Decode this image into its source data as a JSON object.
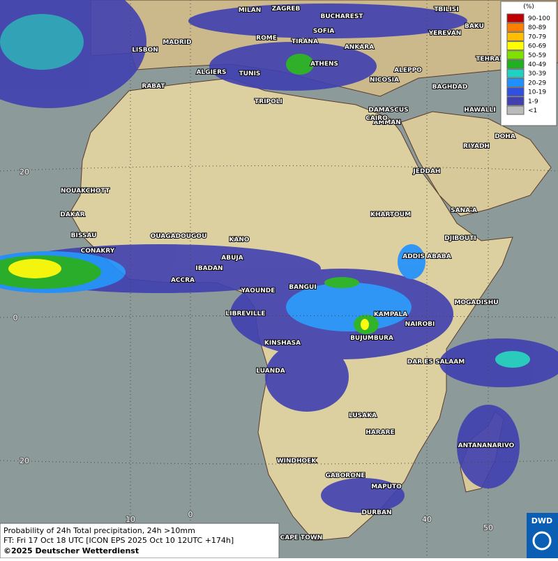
{
  "map": {
    "cities": [
      "MILAN",
      "ZAGREB",
      "BUCHAREST",
      "TBILISI",
      "BAKU",
      "YEREVAN",
      "ROME",
      "SOFIA",
      "MADRID",
      "LISBON",
      "TIRANA",
      "ANKARA",
      "TEHRAN",
      "ATHENS",
      "ALGIERS",
      "TUNIS",
      "ALEPPO",
      "RABAT",
      "NICOSIA",
      "BAGHDAD",
      "DAMASCUS",
      "TRIPOLI",
      "AMMAN",
      "HAWALLI",
      "CAIRO",
      "DOHA",
      "RIYADH",
      "NOUAKCHOTT",
      "JEDDAH",
      "DAKAR",
      "KHARTOUM",
      "SANA'A",
      "BISSAU",
      "OUAGADOUGOU",
      "KANO",
      "DJIBOUTI",
      "CONAKRY",
      "ABUJA",
      "ADDIS ABABA",
      "IBADAN",
      "ACCRA",
      "YAOUNDE",
      "BANGUI",
      "MOGADISHU",
      "LIBREVILLE",
      "KAMPALA",
      "NAIROBI",
      "BUJUMBURA",
      "KINSHASA",
      "DAR ES SALAAM",
      "LUANDA",
      "LUSAKA",
      "HARARE",
      "ANTANANARIVO",
      "WINDHOEK",
      "GABORONE",
      "MAPUTO",
      "DURBAN",
      "CAPE TOWN"
    ],
    "lat_labels": [
      "20",
      "0",
      "20"
    ],
    "lon_labels": [
      "10",
      "0",
      "40",
      "50"
    ]
  },
  "legend": {
    "title": "(%)",
    "entries": [
      {
        "label": "90-100",
        "color": "#c00000"
      },
      {
        "label": "80-89",
        "color": "#ff7f00"
      },
      {
        "label": "70-79",
        "color": "#ffbf00"
      },
      {
        "label": "60-69",
        "color": "#ffff00"
      },
      {
        "label": "50-59",
        "color": "#80e000"
      },
      {
        "label": "40-49",
        "color": "#20b020"
      },
      {
        "label": "30-39",
        "color": "#20d0c0"
      },
      {
        "label": "20-29",
        "color": "#1e90ff"
      },
      {
        "label": "10-19",
        "color": "#3050e0"
      },
      {
        "label": "1-9",
        "color": "#4040b0"
      },
      {
        "label": "<1",
        "color": "#bbbbbb"
      }
    ]
  },
  "footer": {
    "line1": "Probability of 24h Total precipitation, 24h >10mm",
    "line2": "FT: Fri 17 Oct 18 UTC [ICON EPS 2025 Oct 10 12UTC +174h]",
    "copyright": "©2025 Deutscher Wetterdienst",
    "logo": "DWD"
  }
}
